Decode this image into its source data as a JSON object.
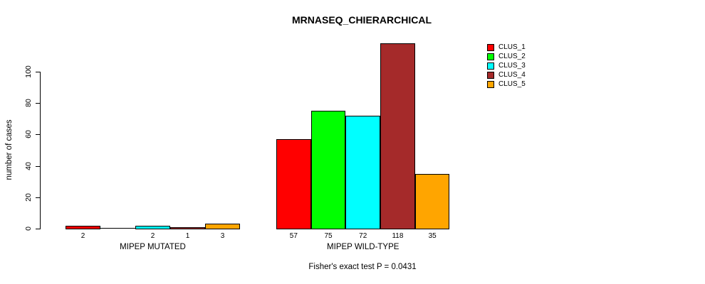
{
  "title": "MRNASEQ_CHIERARCHICAL",
  "ylabel": "number of cases",
  "footer": "Fisher's exact test P = 0.0431",
  "chart_data": {
    "type": "bar",
    "title": "MRNASEQ_CHIERARCHICAL",
    "ylabel": "number of cases",
    "xlabel": "",
    "ylim": [
      0,
      100
    ],
    "yticks": [
      0,
      20,
      40,
      60,
      80,
      100
    ],
    "grid": false,
    "legend_position": "top-right",
    "categories": [
      "MIPEP MUTATED",
      "MIPEP WILD-TYPE"
    ],
    "series": [
      {
        "name": "CLUS_1",
        "color": "#FF0000",
        "values": [
          2,
          57
        ]
      },
      {
        "name": "CLUS_2",
        "color": "#00FF00",
        "values": [
          0,
          75
        ]
      },
      {
        "name": "CLUS_3",
        "color": "#00FFFF",
        "values": [
          2,
          72
        ]
      },
      {
        "name": "CLUS_4",
        "color": "#A52A2A",
        "values": [
          1,
          118
        ]
      },
      {
        "name": "CLUS_5",
        "color": "#FFA500",
        "values": [
          3,
          35
        ]
      }
    ],
    "bar_value_labels": [
      [
        "2",
        "",
        "2",
        "1",
        "3"
      ],
      [
        "57",
        "75",
        "72",
        "118",
        "35"
      ]
    ],
    "annotation": "Fisher's exact test P = 0.0431"
  }
}
